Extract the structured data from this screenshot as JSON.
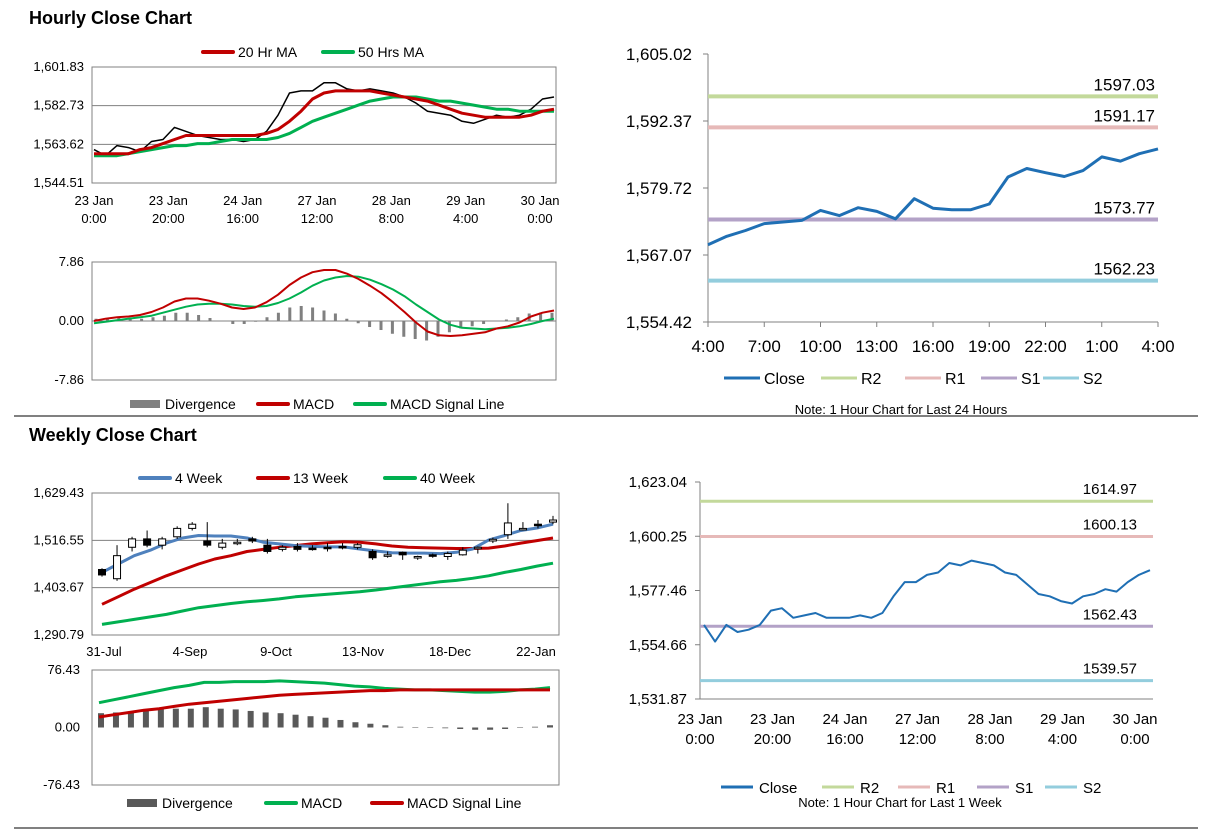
{
  "sections": {
    "hourly_title": "Hourly Close Chart",
    "weekly_title": "Weekly Close Chart"
  },
  "chart_data": [
    {
      "id": "hourly_price",
      "type": "line",
      "legend": [
        "20 Hr MA",
        "50 Hrs MA"
      ],
      "colors": {
        "ma20": "#c00000",
        "ma50": "#00b050",
        "price": "#000000"
      },
      "yticks": [
        "1,601.83",
        "1,582.73",
        "1,563.62",
        "1,544.51"
      ],
      "ylim": [
        1544.51,
        1601.83
      ],
      "xticks": [
        [
          "23 Jan",
          "0:00"
        ],
        [
          "23 Jan",
          "20:00"
        ],
        [
          "24 Jan",
          "16:00"
        ],
        [
          "27 Jan",
          "12:00"
        ],
        [
          "28 Jan",
          "8:00"
        ],
        [
          "29 Jan",
          "4:00"
        ],
        [
          "30 Jan",
          "0:00"
        ]
      ],
      "series": [
        {
          "key": "price",
          "values": [
            1561,
            1558,
            1563,
            1562,
            1560,
            1565,
            1566,
            1572,
            1570,
            1568,
            1567,
            1566,
            1566,
            1565,
            1566,
            1570,
            1578,
            1589,
            1590,
            1590,
            1594,
            1594,
            1591,
            1590,
            1591,
            1590,
            1589,
            1587,
            1584,
            1580,
            1579,
            1578,
            1575,
            1574,
            1576,
            1578,
            1577,
            1578,
            1581,
            1586,
            1587
          ]
        },
        {
          "key": "ma20",
          "values": [
            1559,
            1559,
            1559,
            1559,
            1561,
            1562,
            1564,
            1566,
            1568,
            1568,
            1568,
            1568,
            1568,
            1568,
            1568,
            1569,
            1571,
            1575,
            1580,
            1586,
            1589,
            1590,
            1590,
            1590,
            1590,
            1589,
            1588,
            1587,
            1586,
            1585,
            1583,
            1581,
            1579,
            1578,
            1577,
            1577,
            1577,
            1577,
            1578,
            1580,
            1581
          ]
        },
        {
          "key": "ma50",
          "values": [
            1558,
            1558,
            1558,
            1559,
            1560,
            1561,
            1562,
            1563,
            1563,
            1564,
            1564,
            1565,
            1566,
            1566,
            1566,
            1566,
            1567,
            1569,
            1572,
            1575,
            1577,
            1579,
            1581,
            1583,
            1585,
            1586,
            1587,
            1587,
            1587,
            1586,
            1585,
            1585,
            1584,
            1583,
            1582,
            1581,
            1581,
            1580,
            1580,
            1580,
            1580
          ]
        }
      ]
    },
    {
      "id": "hourly_macd",
      "type": "line",
      "legend": [
        "Divergence",
        "MACD",
        "MACD Signal Line"
      ],
      "colors": {
        "divergence": "#808080",
        "macd": "#c00000",
        "signal": "#00b050"
      },
      "yticks": [
        "7.86",
        "0.00",
        "-7.86"
      ],
      "ylim": [
        -7.86,
        7.86
      ],
      "series": [
        {
          "key": "macd",
          "values": [
            0,
            0.3,
            0.5,
            0.6,
            0.8,
            1.2,
            1.8,
            2.6,
            3.0,
            3.0,
            2.7,
            2.3,
            1.8,
            1.6,
            1.8,
            2.5,
            3.5,
            4.8,
            5.8,
            6.5,
            6.8,
            6.8,
            6.3,
            5.6,
            4.7,
            3.7,
            2.5,
            1.2,
            -0.2,
            -1.4,
            -1.9,
            -2.0,
            -1.9,
            -1.7,
            -1.5,
            -1.0,
            -0.7,
            -0.2,
            0.6,
            1.1,
            1.4
          ]
        },
        {
          "key": "signal",
          "values": [
            -0.3,
            -0.1,
            0.1,
            0.3,
            0.5,
            0.7,
            1.1,
            1.5,
            1.9,
            2.2,
            2.3,
            2.3,
            2.2,
            2.0,
            1.9,
            2.0,
            2.4,
            3.0,
            3.8,
            4.7,
            5.4,
            5.8,
            6.0,
            5.9,
            5.5,
            4.9,
            4.2,
            3.3,
            2.2,
            1.2,
            0.2,
            -0.5,
            -0.9,
            -1.0,
            -1.1,
            -1.0,
            -0.9,
            -0.7,
            -0.4,
            0,
            0.3
          ]
        },
        {
          "key": "divergence",
          "values": [
            0.3,
            0.4,
            0.4,
            0.3,
            0.3,
            0.5,
            0.7,
            1.1,
            1.1,
            0.8,
            0.4,
            0,
            -0.4,
            -0.4,
            -0.1,
            0.5,
            1.1,
            1.8,
            2.0,
            1.8,
            1.4,
            1.0,
            0.3,
            -0.3,
            -0.8,
            -1.2,
            -1.7,
            -2.1,
            -2.4,
            -2.6,
            -2.1,
            -1.5,
            -1.0,
            -0.7,
            -0.4,
            0,
            0.2,
            0.5,
            1.0,
            1.1,
            1.1
          ]
        }
      ]
    },
    {
      "id": "hourly_24h",
      "type": "line",
      "note": "Note: 1 Hour Chart for Last 24 Hours",
      "legend": [
        "Close",
        "R2",
        "R1",
        "S1",
        "S2"
      ],
      "colors": {
        "close": "#1f6fb4",
        "r2": "#c3d99b",
        "r1": "#e6b9b8",
        "s1": "#b3a2c7",
        "s2": "#93cddd"
      },
      "yticks": [
        "1,605.02",
        "1,592.37",
        "1,579.72",
        "1,567.07",
        "1,554.42"
      ],
      "ylim": [
        1554.42,
        1605.02
      ],
      "xticks": [
        "4:00",
        "7:00",
        "10:00",
        "13:00",
        "16:00",
        "19:00",
        "22:00",
        "1:00",
        "4:00"
      ],
      "levels": {
        "r2": 1597.03,
        "r1": 1591.17,
        "s1": 1573.77,
        "s2": 1562.23
      },
      "level_labels": {
        "r2": "1597.03",
        "r1": "1591.17",
        "s1": "1573.77",
        "s2": "1562.23"
      },
      "series": [
        {
          "key": "close",
          "values": [
            1569.0,
            1570.6,
            1571.7,
            1573.0,
            1573.3,
            1573.6,
            1575.5,
            1574.5,
            1576.0,
            1575.3,
            1573.9,
            1577.7,
            1575.9,
            1575.6,
            1575.6,
            1576.7,
            1581.8,
            1583.4,
            1582.6,
            1581.9,
            1583.0,
            1585.6,
            1584.8,
            1586.2,
            1587.1
          ]
        }
      ]
    },
    {
      "id": "weekly_price",
      "type": "line",
      "legend": [
        "4 Week",
        "13 Week",
        "40 Week"
      ],
      "colors": {
        "w4": "#4f81bd",
        "w13": "#c00000",
        "w40": "#00b050"
      },
      "yticks": [
        "1,629.43",
        "1,516.55",
        "1,403.67",
        "1,290.79"
      ],
      "ylim": [
        1290.79,
        1629.43
      ],
      "xticks": [
        "31-Jul",
        "4-Sep",
        "9-Oct",
        "13-Nov",
        "18-Dec",
        "22-Jan"
      ],
      "series": [
        {
          "key": "w4",
          "values": [
            1440,
            1460,
            1480,
            1493,
            1510,
            1522,
            1528,
            1527,
            1527,
            1522,
            1512,
            1508,
            1504,
            1502,
            1501,
            1501,
            1496,
            1491,
            1487,
            1486,
            1486,
            1485,
            1488,
            1496,
            1517,
            1528,
            1540,
            1546,
            1555
          ]
        },
        {
          "key": "w13",
          "values": [
            1364,
            1382,
            1400,
            1416,
            1432,
            1446,
            1460,
            1472,
            1480,
            1490,
            1495,
            1500,
            1504,
            1508,
            1511,
            1513,
            1512,
            1508,
            1503,
            1500,
            1499,
            1498,
            1497,
            1497,
            1498,
            1503,
            1510,
            1516,
            1522
          ]
        },
        {
          "key": "w40",
          "values": [
            1316,
            1322,
            1328,
            1334,
            1340,
            1348,
            1356,
            1361,
            1366,
            1370,
            1373,
            1377,
            1382,
            1385,
            1388,
            1391,
            1394,
            1398,
            1403,
            1408,
            1413,
            1418,
            1421,
            1426,
            1432,
            1440,
            1447,
            1455,
            1462
          ]
        },
        {
          "key": "ohlc",
          "values": [
            [
              1447,
              1434,
              1450,
              1430
            ],
            [
              1425,
              1480,
              1505,
              1420
            ],
            [
              1500,
              1520,
              1525,
              1490
            ],
            [
              1520,
              1505,
              1540,
              1500
            ],
            [
              1505,
              1520,
              1525,
              1495
            ],
            [
              1525,
              1545,
              1550,
              1520
            ],
            [
              1545,
              1555,
              1560,
              1540
            ],
            [
              1515,
              1505,
              1560,
              1500
            ],
            [
              1500,
              1510,
              1520,
              1495
            ],
            [
              1510,
              1512,
              1520,
              1505
            ],
            [
              1520,
              1515,
              1525,
              1510
            ],
            [
              1505,
              1490,
              1520,
              1485
            ],
            [
              1495,
              1500,
              1505,
              1490
            ],
            [
              1502,
              1495,
              1510,
              1490
            ],
            [
              1498,
              1496,
              1505,
              1492
            ],
            [
              1500,
              1497,
              1510,
              1490
            ],
            [
              1502,
              1500,
              1510,
              1495
            ],
            [
              1500,
              1506,
              1510,
              1495
            ],
            [
              1490,
              1475,
              1495,
              1470
            ],
            [
              1480,
              1482,
              1490,
              1475
            ],
            [
              1488,
              1482,
              1490,
              1470
            ],
            [
              1475,
              1478,
              1480,
              1470
            ],
            [
              1482,
              1480,
              1485,
              1475
            ],
            [
              1478,
              1485,
              1490,
              1470
            ],
            [
              1482,
              1493,
              1500,
              1480
            ],
            [
              1497,
              1500,
              1502,
              1485
            ],
            [
              1515,
              1519,
              1523,
              1510
            ],
            [
              1530,
              1558,
              1605,
              1520
            ],
            [
              1545,
              1545,
              1560,
              1540
            ],
            [
              1555,
              1552,
              1565,
              1545
            ],
            [
              1560,
              1565,
              1575,
              1555
            ]
          ]
        }
      ]
    },
    {
      "id": "weekly_macd",
      "type": "line",
      "legend": [
        "Divergence",
        "MACD",
        "MACD Signal Line"
      ],
      "colors": {
        "divergence": "#595959",
        "macd": "#00b050",
        "signal": "#c00000"
      },
      "yticks": [
        "76.43",
        "0.00",
        "-76.43"
      ],
      "ylim": [
        -76.43,
        76.43
      ],
      "series": [
        {
          "key": "macd",
          "values": [
            33,
            37,
            41,
            45,
            49,
            53,
            56,
            60,
            60,
            61,
            61,
            61,
            62,
            61,
            60,
            59,
            57,
            55,
            54,
            52,
            51,
            50,
            50,
            49,
            48,
            47,
            47,
            48,
            50,
            51,
            53
          ]
        },
        {
          "key": "signal",
          "values": [
            14,
            17,
            20,
            23,
            25,
            28,
            31,
            33,
            35,
            37,
            39,
            41,
            43,
            44,
            45,
            46,
            47,
            48,
            49,
            49,
            50,
            50,
            50,
            50,
            50,
            50,
            50,
            50,
            50,
            50,
            50
          ]
        },
        {
          "key": "divergence",
          "values": [
            19,
            20,
            21,
            22,
            24,
            25,
            25,
            27,
            25,
            24,
            22,
            20,
            19,
            17,
            15,
            13,
            10,
            7,
            5,
            3,
            1,
            0,
            0,
            -1,
            -2,
            -3,
            -3,
            -2,
            0,
            1,
            3
          ]
        }
      ]
    },
    {
      "id": "weekly_1w",
      "type": "line",
      "note": "Note: 1 Hour Chart for Last 1 Week",
      "legend": [
        "Close",
        "R2",
        "R1",
        "S1",
        "S2"
      ],
      "colors": {
        "close": "#1f6fb4",
        "r2": "#c3d99b",
        "r1": "#e6b9b8",
        "s1": "#b3a2c7",
        "s2": "#93cddd"
      },
      "yticks": [
        "1,623.04",
        "1,600.25",
        "1,577.46",
        "1,554.66",
        "1,531.87"
      ],
      "ylim": [
        1531.87,
        1623.04
      ],
      "xticks": [
        [
          "23 Jan",
          "0:00"
        ],
        [
          "23 Jan",
          "20:00"
        ],
        [
          "24 Jan",
          "16:00"
        ],
        [
          "27 Jan",
          "12:00"
        ],
        [
          "28 Jan",
          "8:00"
        ],
        [
          "29 Jan",
          "4:00"
        ],
        [
          "30 Jan",
          "0:00"
        ]
      ],
      "levels": {
        "r2": 1614.97,
        "r1": 1600.13,
        "s1": 1562.43,
        "s2": 1539.57
      },
      "level_labels": {
        "r2": "1614.97",
        "r1": "1600.13",
        "s1": "1562.43",
        "s2": "1539.57"
      },
      "series": [
        {
          "key": "close",
          "values": [
            1563,
            1556,
            1563,
            1560,
            1561,
            1563,
            1569,
            1570,
            1566,
            1567,
            1568,
            1566,
            1566,
            1566,
            1567,
            1566,
            1568,
            1575,
            1581,
            1581,
            1584,
            1585,
            1589,
            1588,
            1590,
            1589,
            1588,
            1585,
            1584,
            1580,
            1576,
            1575,
            1573,
            1572,
            1575,
            1576,
            1578,
            1577,
            1581,
            1584,
            1586
          ]
        }
      ]
    }
  ]
}
